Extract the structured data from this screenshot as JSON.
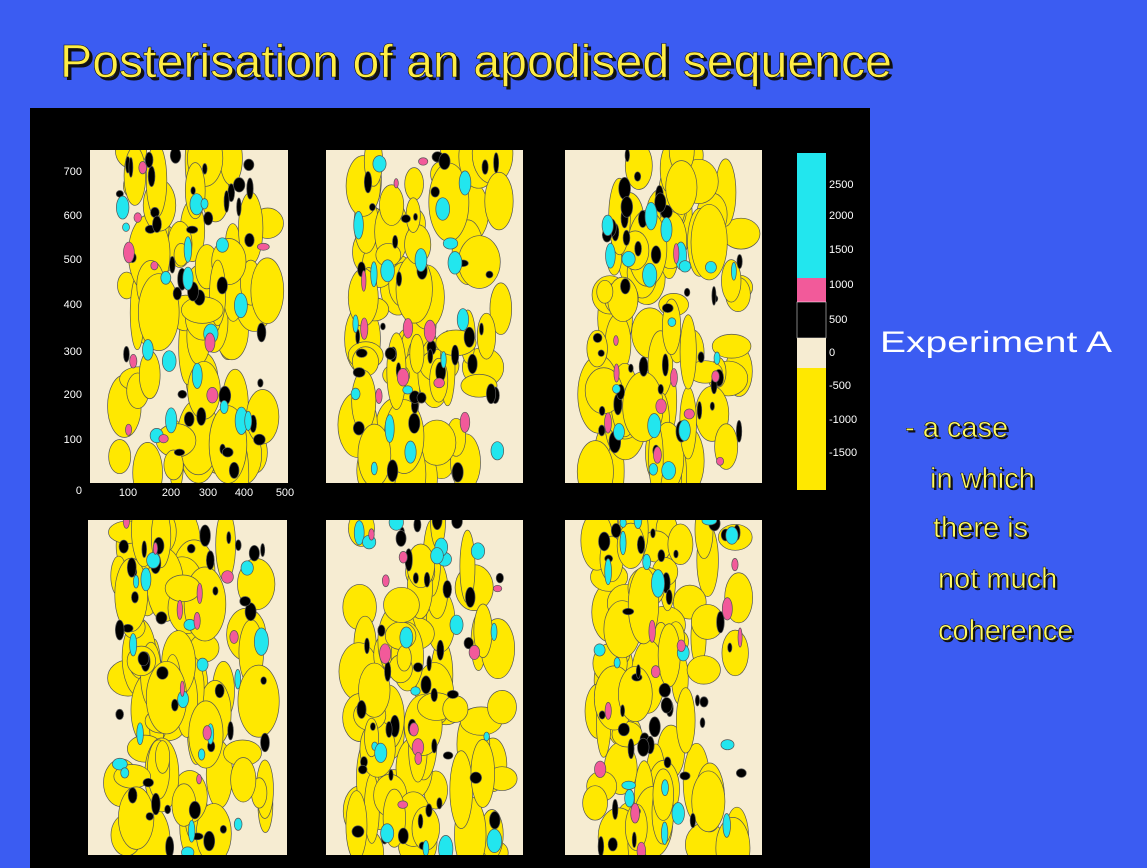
{
  "title": "Posterisation of an  apodised sequence",
  "figure": {
    "y_axis_labels": [
      700,
      600,
      500,
      400,
      300,
      200,
      100,
      0
    ],
    "x_axis_labels": [
      100,
      200,
      300,
      400,
      500
    ],
    "colorbar_labels": [
      2500,
      2000,
      1500,
      1000,
      500,
      0,
      -500,
      -1000,
      -1500
    ]
  },
  "side_text": {
    "heading": "Experiment A",
    "lines": [
      "- a case",
      "in which",
      "there is",
      "not much",
      "coherence"
    ]
  }
}
